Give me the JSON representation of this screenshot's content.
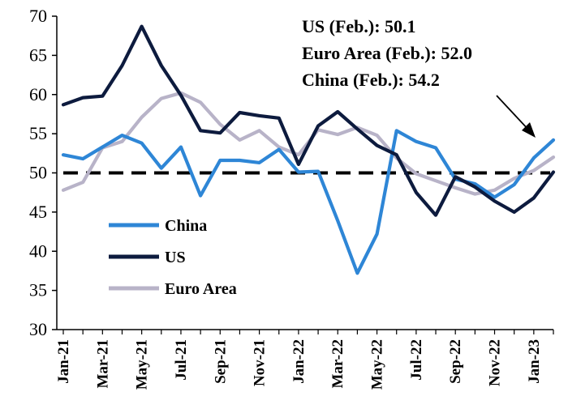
{
  "chart_data": {
    "type": "line",
    "x": [
      "Jan-21",
      "Feb-21",
      "Mar-21",
      "Apr-21",
      "May-21",
      "Jun-21",
      "Jul-21",
      "Aug-21",
      "Sep-21",
      "Oct-21",
      "Nov-21",
      "Dec-21",
      "Jan-22",
      "Feb-22",
      "Mar-22",
      "Apr-22",
      "May-22",
      "Jun-22",
      "Jul-22",
      "Aug-22",
      "Sep-22",
      "Oct-22",
      "Nov-22",
      "Dec-22",
      "Jan-23",
      "Feb-23"
    ],
    "x_tick_labels": [
      "Jan-21",
      "Mar-21",
      "May-21",
      "Jul-21",
      "Sep-21",
      "Nov-21",
      "Jan-22",
      "Mar-22",
      "May-22",
      "Jul-22",
      "Sep-22",
      "Nov-22",
      "Jan-23"
    ],
    "ylim": [
      30,
      70
    ],
    "y_ticks": [
      30,
      35,
      40,
      45,
      50,
      55,
      60,
      65,
      70
    ],
    "reference_line": 50,
    "series": [
      {
        "name": "China",
        "color": "#2e86d6",
        "values": [
          52.3,
          51.8,
          53.3,
          54.8,
          53.8,
          50.6,
          53.3,
          47.1,
          51.6,
          51.6,
          51.3,
          53.0,
          50.1,
          50.2,
          43.9,
          37.2,
          42.2,
          55.4,
          54.0,
          53.2,
          49.2,
          48.6,
          46.9,
          48.5,
          51.9,
          54.2
        ]
      },
      {
        "name": "US",
        "color": "#0d1b3e",
        "values": [
          58.7,
          59.6,
          59.8,
          63.7,
          68.7,
          63.7,
          59.9,
          55.4,
          55.1,
          57.7,
          57.3,
          57.0,
          51.1,
          56.0,
          57.8,
          55.6,
          53.5,
          52.3,
          47.5,
          44.6,
          49.5,
          48.2,
          46.4,
          45.0,
          46.8,
          50.1
        ]
      },
      {
        "name": "Euro Area",
        "color": "#b8b3c8",
        "values": [
          47.8,
          48.8,
          53.2,
          54.0,
          57.1,
          59.5,
          60.2,
          59.0,
          56.2,
          54.2,
          55.4,
          53.3,
          52.3,
          55.5,
          54.9,
          55.8,
          54.8,
          51.9,
          49.9,
          49.0,
          48.1,
          47.3,
          47.8,
          49.3,
          50.3,
          52.0
        ]
      }
    ],
    "annotations": [
      "US (Feb.):  50.1",
      "Euro Area (Feb.):  52.0",
      "China (Feb.): 54.2"
    ],
    "legend_position": "bottom-left"
  }
}
